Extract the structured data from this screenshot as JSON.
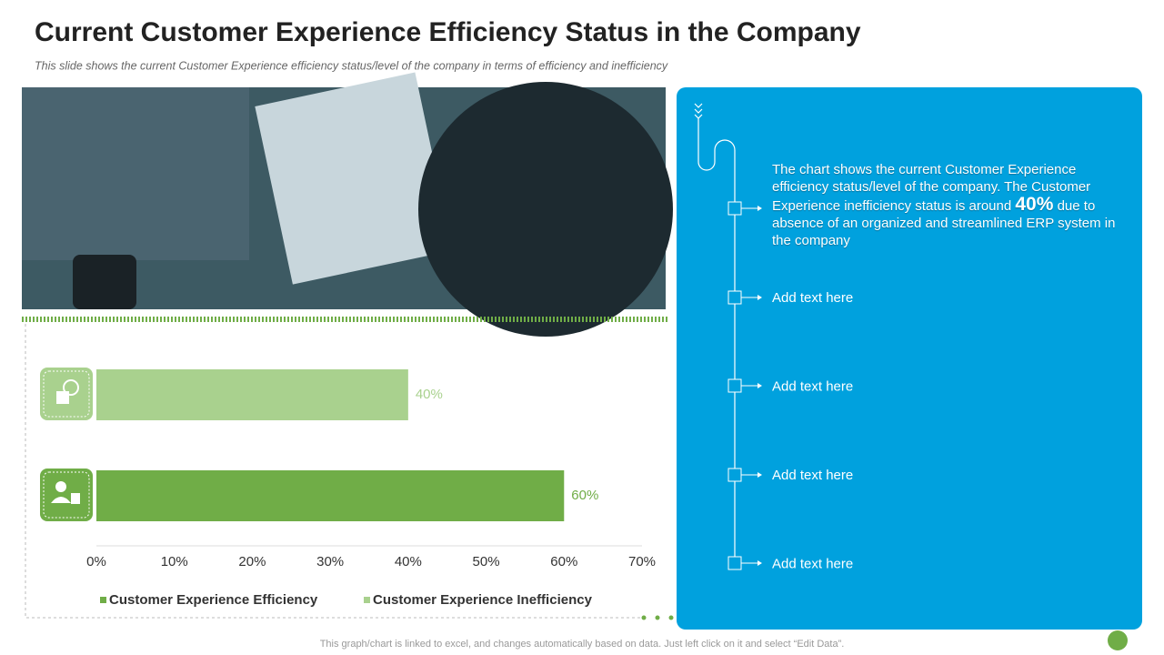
{
  "header": {
    "title": "Current Customer Experience Efficiency Status in the Company",
    "subtitle": "This slide shows the current Customer Experience efficiency status/level of the company in terms of efficiency and inefficiency"
  },
  "chart_data": {
    "type": "bar",
    "orientation": "horizontal",
    "series": [
      {
        "name": "Customer Experience Inefficiency",
        "color": "#a9d18e",
        "values": [
          40
        ],
        "value_labels": [
          "40%"
        ]
      },
      {
        "name": "Customer Experience Efficiency",
        "color": "#70ad47",
        "values": [
          60
        ],
        "value_labels": [
          "60%"
        ]
      }
    ],
    "xlim": [
      0,
      70
    ],
    "xticks": [
      {
        "value": 0,
        "label": "0%"
      },
      {
        "value": 10,
        "label": "10%"
      },
      {
        "value": 20,
        "label": "20%"
      },
      {
        "value": 30,
        "label": "30%"
      },
      {
        "value": 40,
        "label": "40%"
      },
      {
        "value": 50,
        "label": "50%"
      },
      {
        "value": 60,
        "label": "60%"
      },
      {
        "value": 70,
        "label": "70%"
      }
    ],
    "legend": "bottom"
  },
  "panel": {
    "text_before": "The chart shows the current Customer Experience efficiency status/level of the company. The Customer Experience inefficiency status is around",
    "highlight": "40%",
    "text_after": "due to absence of an organized and streamlined ERP system in the company",
    "items": [
      "Add text here",
      "Add text here",
      "Add text here",
      "Add text here"
    ]
  },
  "footer": "This graph/chart is linked to excel,  and changes automatically based on data. Just left click on it and select “Edit Data”."
}
